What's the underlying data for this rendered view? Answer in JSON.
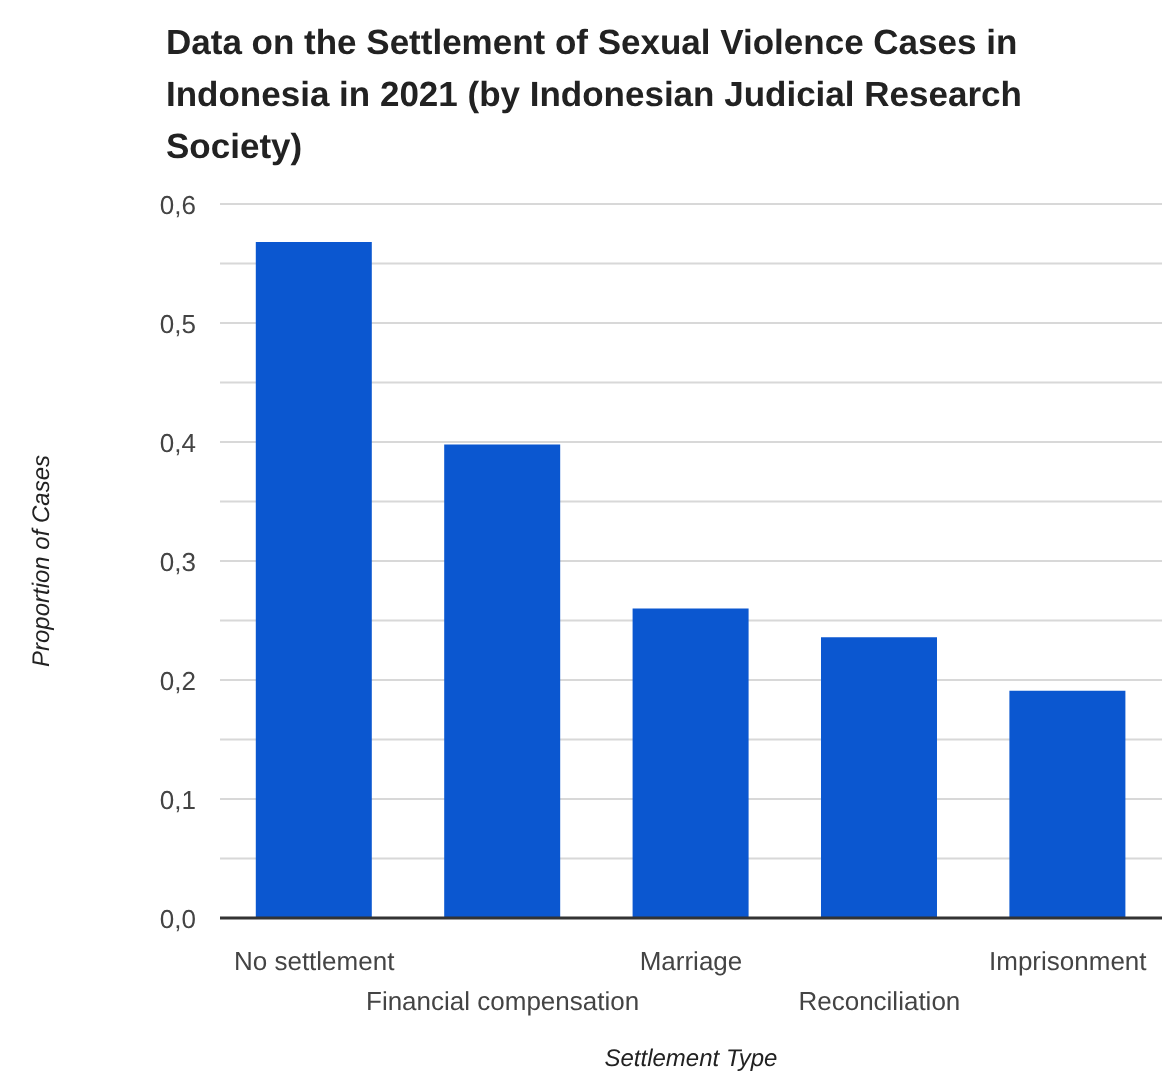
{
  "chart_data": {
    "type": "bar",
    "title": "Data on the Settlement of Sexual Violence Cases in Indonesia in 2021 (by Indonesian Judicial Research Society)",
    "xlabel": "Settlement Type",
    "ylabel": "Proportion of Cases",
    "categories": [
      "No settlement",
      "Financial compensation",
      "Marriage",
      "Reconciliation",
      "Imprisonment"
    ],
    "values": [
      0.568,
      0.398,
      0.26,
      0.236,
      0.191
    ],
    "color": "#0b57d0",
    "ylim": [
      0,
      0.6
    ],
    "yticks": [
      {
        "value": 0,
        "label": "0,0"
      },
      {
        "value": 0.05,
        "label": null
      },
      {
        "value": 0.1,
        "label": "0,1"
      },
      {
        "value": 0.15,
        "label": null
      },
      {
        "value": 0.2,
        "label": "0,2"
      },
      {
        "value": 0.25,
        "label": null
      },
      {
        "value": 0.3,
        "label": "0,3"
      },
      {
        "value": 0.35,
        "label": null
      },
      {
        "value": 0.4,
        "label": "0,4"
      },
      {
        "value": 0.45,
        "label": null
      },
      {
        "value": 0.5,
        "label": "0,5"
      },
      {
        "value": 0.55,
        "label": null
      },
      {
        "value": 0.6,
        "label": "0,6"
      }
    ],
    "grid": "y"
  }
}
